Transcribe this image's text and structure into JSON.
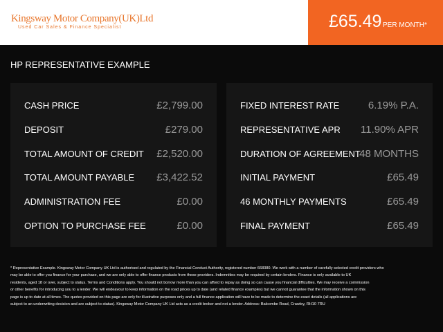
{
  "header": {
    "logo_title": "Kingsway Motor Company(UK)Ltd",
    "logo_subtitle": "Used Car Sales & Finance Specialist",
    "price": "£65.49",
    "price_suffix": "PER MONTH*"
  },
  "section_title": "HP REPRESENTATIVE EXAMPLE",
  "panels": [
    {
      "rows": [
        [
          "CASH PRICE",
          "£2,799.00"
        ],
        [
          "DEPOSIT",
          "£279.00"
        ],
        [
          "TOTAL AMOUNT OF CREDIT",
          "£2,520.00"
        ],
        [
          "TOTAL AMOUNT PAYABLE",
          "£3,422.52"
        ],
        [
          "ADMINISTRATION FEE",
          "£0.00"
        ],
        [
          "OPTION TO PURCHASE FEE",
          "£0.00"
        ]
      ]
    },
    {
      "rows": [
        [
          "FIXED INTEREST RATE",
          "6.19% P.A."
        ],
        [
          "REPRESENTATIVE APR",
          "11.90% APR"
        ],
        [
          "DURATION OF AGREEMENT",
          "48 MONTHS"
        ],
        [
          "INITIAL PAYMENT",
          "£65.49"
        ],
        [
          "46 MONTHLY PAYMENTS",
          "£65.49"
        ],
        [
          "FINAL PAYMENT",
          "£65.49"
        ]
      ]
    }
  ],
  "footer": {
    "lines": [
      "* Representative Example. Kingsway Motor Company UK Ltd is authorised and regulated by the Financial Conduct Authority, registered number 668380. We work with a number of carefully selected credit providers who",
      "may be able to offer you finance for your purchase, and we are only able to offer finance products from these providers. Indemnities may be required by certain lenders. Finance is only available to UK",
      "residents, aged 18 or over, subject to status. Terms and Conditions apply. You should not borrow more than you can afford to repay as doing so can cause you financial difficulties. We may receive a commission",
      "or other benefits for introducing you to a lender. We will endeavour to keep information on the road prices up to date (and related finance examples) but we cannot guarantee that the information shown on this",
      "page is up to date at all times. The quotes provided on this page are only for illustrative purposes only and a full finance application will have to be made to determine the exact details (all applications are",
      "subject to an underwriting decision and are subject to status). Kingsway Motor Company UK Ltd acts as a credit broker and not a lender. Address: Balcombe Road, Crawley, RH10 7RU"
    ]
  }
}
